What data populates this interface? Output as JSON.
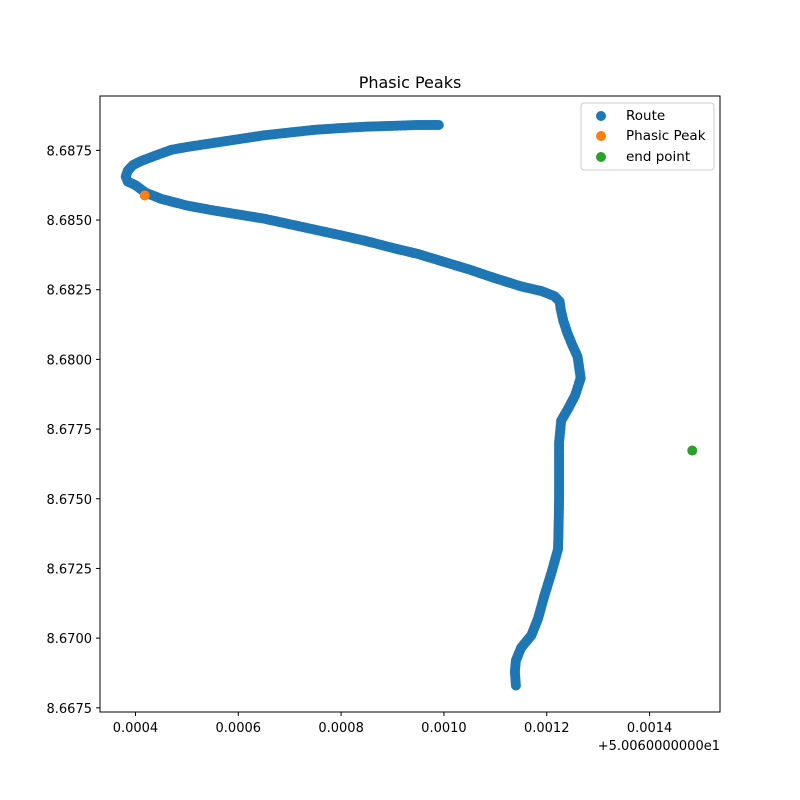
{
  "chart_data": {
    "type": "scatter",
    "title": "Phasic Peaks",
    "xlabel": "",
    "ylabel": "",
    "x_offset_label": "+5.0060000000e1",
    "xlim": [
      0.000331,
      0.001537
    ],
    "ylim": [
      8.66735,
      8.68945
    ],
    "xticks": [
      0.0004,
      0.0006,
      0.0008,
      0.001,
      0.0012,
      0.0014
    ],
    "xtick_labels": [
      "0.0004",
      "0.0006",
      "0.0008",
      "0.0010",
      "0.0012",
      "0.0014"
    ],
    "yticks": [
      8.6675,
      8.67,
      8.6725,
      8.675,
      8.6775,
      8.68,
      8.6825,
      8.685,
      8.6875
    ],
    "ytick_labels": [
      "8.6675",
      "8.6700",
      "8.6725",
      "8.6750",
      "8.6775",
      "8.6800",
      "8.6825",
      "8.6850",
      "8.6875"
    ],
    "grid": false,
    "legend_position": "top-right",
    "series": [
      {
        "name": "Route",
        "color": "#1f77b4",
        "points": [
          [
            0.00099,
            8.68841
          ],
          [
            0.00095,
            8.68841
          ],
          [
            0.0009,
            8.68838
          ],
          [
            0.00085,
            8.68835
          ],
          [
            0.0008,
            8.6883
          ],
          [
            0.00075,
            8.68824
          ],
          [
            0.0007,
            8.68814
          ],
          [
            0.00065,
            8.68804
          ],
          [
            0.0006,
            8.6879
          ],
          [
            0.00055,
            8.68776
          ],
          [
            0.0005,
            8.68762
          ],
          [
            0.00047,
            8.68752
          ],
          [
            0.00044,
            8.68732
          ],
          [
            0.00041,
            8.68711
          ],
          [
            0.000395,
            8.68697
          ],
          [
            0.000385,
            8.68677
          ],
          [
            0.000381,
            8.68656
          ],
          [
            0.000385,
            8.68638
          ],
          [
            0.0004,
            8.68625
          ],
          [
            0.00042,
            8.68598
          ],
          [
            0.00045,
            8.68576
          ],
          [
            0.0005,
            8.68552
          ],
          [
            0.00055,
            8.68535
          ],
          [
            0.0006,
            8.6852
          ],
          [
            0.00065,
            8.68505
          ],
          [
            0.0007,
            8.68485
          ],
          [
            0.00075,
            8.68465
          ],
          [
            0.0008,
            8.68445
          ],
          [
            0.00085,
            8.68424
          ],
          [
            0.0009,
            8.684
          ],
          [
            0.00095,
            8.68378
          ],
          [
            0.001,
            8.6835
          ],
          [
            0.00105,
            8.68322
          ],
          [
            0.0011,
            8.68291
          ],
          [
            0.00115,
            8.68262
          ],
          [
            0.00119,
            8.68245
          ],
          [
            0.001215,
            8.68227
          ],
          [
            0.001225,
            8.68208
          ],
          [
            0.001227,
            8.68182
          ],
          [
            0.001232,
            8.6814
          ],
          [
            0.00124,
            8.68095
          ],
          [
            0.00125,
            8.6805
          ],
          [
            0.00126,
            8.6801
          ],
          [
            0.001266,
            8.67933
          ],
          [
            0.001255,
            8.6787
          ],
          [
            0.00124,
            8.67818
          ],
          [
            0.001228,
            8.6778
          ],
          [
            0.001224,
            8.67702
          ],
          [
            0.001224,
            8.676
          ],
          [
            0.001224,
            8.675
          ],
          [
            0.001223,
            8.674
          ],
          [
            0.001222,
            8.6732
          ],
          [
            0.00121,
            8.6724
          ],
          [
            0.001195,
            8.6715
          ],
          [
            0.001183,
            8.6707
          ],
          [
            0.00117,
            8.6701
          ],
          [
            0.00115,
            8.66965
          ],
          [
            0.00114,
            8.6692
          ],
          [
            0.001138,
            8.6688
          ],
          [
            0.00114,
            8.6683
          ]
        ]
      },
      {
        "name": "Phasic Peak",
        "color": "#ff7f0e",
        "points": [
          [
            0.000418,
            8.68588
          ]
        ]
      },
      {
        "name": "end point",
        "color": "#2ca02c",
        "points": [
          [
            0.001483,
            8.67673
          ]
        ]
      }
    ]
  }
}
